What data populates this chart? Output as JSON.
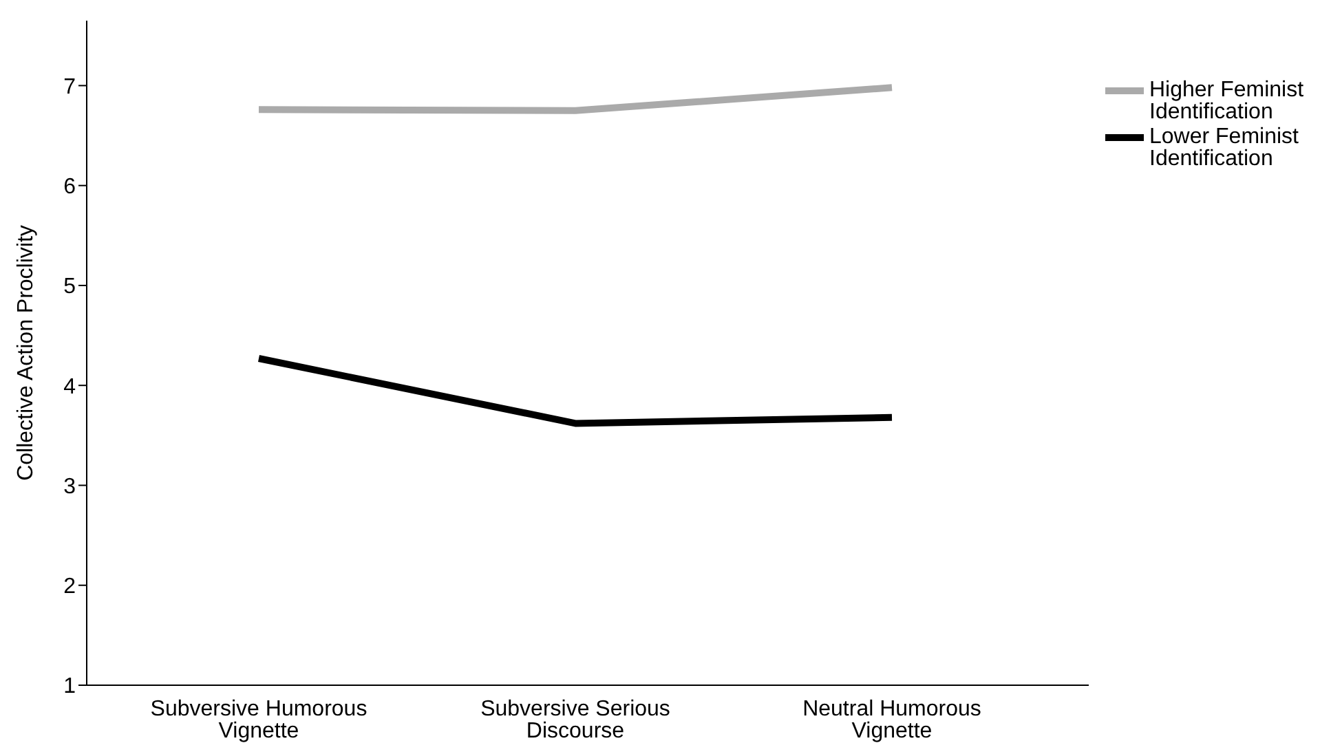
{
  "chart_data": {
    "type": "line",
    "ylabel": "Collective Action Proclivity",
    "categories": [
      "Subversive Humorous Vignette",
      "Subversive Serious Discourse",
      "Neutral Humorous Vignette"
    ],
    "series": [
      {
        "name": "Higher Feminist Identification",
        "color": "#aaaaaa",
        "values": [
          6.76,
          6.75,
          6.98
        ]
      },
      {
        "name": "Lower Feminist Identification",
        "color": "#000000",
        "values": [
          4.27,
          3.62,
          3.68
        ]
      }
    ],
    "ylim": [
      1,
      7.65
    ],
    "yticks": [
      1,
      2,
      3,
      4,
      5,
      6,
      7
    ],
    "grid": false,
    "legend": "top right",
    "marker": "none",
    "line_style": "solid"
  }
}
